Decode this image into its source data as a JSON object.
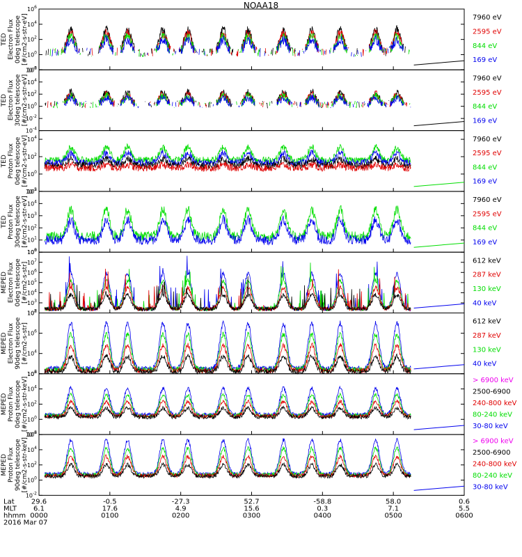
{
  "chart_data": {
    "type": "line",
    "title": "NOAA18",
    "panels": [
      {
        "ylabel": [
          "TED",
          "Electron Flux",
          "0deg telescope",
          "[#/cm2-s-str-eV]"
        ],
        "yticks": [
          "10^6",
          "10^4",
          "10^2",
          "10^0",
          "10^-2"
        ],
        "ylog": [
          -2,
          6
        ],
        "legend": [
          {
            "name": "7960 eV",
            "color": "#000000"
          },
          {
            "name": "2595 eV",
            "color": "#e00000"
          },
          {
            "name": "844 eV",
            "color": "#00dd00"
          },
          {
            "name": "169 eV",
            "color": "#0000ee"
          }
        ],
        "trace": {
          "type": "sparse",
          "base": 0.3,
          "amp": 3,
          "colors": [
            "#000000",
            "#e00000",
            "#00dd00",
            "#0000ee"
          ]
        }
      },
      {
        "ylabel": [
          "TED",
          "Electron Flux",
          "30deg telescope",
          "[#/cm2-s-str-eV]"
        ],
        "yticks": [
          "10^6",
          "10^4",
          "10^2",
          "10^0",
          "10^-2",
          "10^-4"
        ],
        "ylog": [
          -4,
          6
        ],
        "legend": [
          {
            "name": "7960 eV",
            "color": "#000000"
          },
          {
            "name": "2595 eV",
            "color": "#e00000"
          },
          {
            "name": "844 eV",
            "color": "#00dd00"
          },
          {
            "name": "169 eV",
            "color": "#0000ee"
          }
        ],
        "trace": {
          "type": "sparse",
          "base": 0.3,
          "amp": 2,
          "colors": [
            "#000000",
            "#e00000",
            "#00dd00",
            "#0000ee"
          ]
        }
      },
      {
        "ylabel": [
          "TED",
          "Proton Flux",
          "0deg telescope",
          "[#/cm2-s-str-eV]"
        ],
        "yticks": [
          "10^4",
          "10^2",
          "10^0",
          "10^-2"
        ],
        "ylog": [
          -2,
          5
        ],
        "legend": [
          {
            "name": "7960 eV",
            "color": "#000000"
          },
          {
            "name": "2595 eV",
            "color": "#e00000"
          },
          {
            "name": "844 eV",
            "color": "#00dd00"
          },
          {
            "name": "169 eV",
            "color": "#0000ee"
          }
        ],
        "trace": {
          "type": "band",
          "base": 1.6,
          "amp": 1.5,
          "colors": [
            "#00dd00",
            "#0000ee",
            "#000000",
            "#e00000"
          ]
        }
      },
      {
        "ylabel": [
          "TED",
          "Proton Flux",
          "30deg telescope",
          "[#/cm2-s-str-eV]"
        ],
        "yticks": [
          "10^5",
          "10^4",
          "10^3",
          "10^2",
          "10^1",
          "10^0"
        ],
        "ylog": [
          0,
          5
        ],
        "legend": [
          {
            "name": "7960 eV",
            "color": "#000000"
          },
          {
            "name": "2595 eV",
            "color": "#e00000"
          },
          {
            "name": "844 eV",
            "color": "#00dd00"
          },
          {
            "name": "169 eV",
            "color": "#0000ee"
          }
        ],
        "trace": {
          "type": "band",
          "base": 1.3,
          "amp": 2.2,
          "colors": [
            "#00dd00",
            "#0000ee"
          ]
        }
      },
      {
        "ylabel": [
          "MEPED",
          "Electron Flux",
          "0deg telescope",
          "[#/cm2-s-str]"
        ],
        "yticks": [
          "10^8",
          "10^7",
          "10^6",
          "10^5",
          "10^4",
          "10^3",
          "10^2"
        ],
        "ylog": [
          2,
          8
        ],
        "legend": [
          {
            "name": "612 keV",
            "color": "#000000"
          },
          {
            "name": "287 keV",
            "color": "#e00000"
          },
          {
            "name": "130 keV",
            "color": "#00dd00"
          },
          {
            "name": "40 keV",
            "color": "#0000ee"
          }
        ],
        "trace": {
          "type": "spiky",
          "base": 2.4,
          "amp": 3.5,
          "colors": [
            "#0000ee",
            "#00dd00",
            "#e00000",
            "#000000"
          ]
        }
      },
      {
        "ylabel": [
          "MEPED",
          "Electron Flux",
          "90deg telescope",
          "[#/cm2-s-str]"
        ],
        "yticks": [
          "10^8",
          "10^6",
          "10^4",
          "10^2"
        ],
        "ylog": [
          2,
          8
        ],
        "legend": [
          {
            "name": "612 keV",
            "color": "#000000"
          },
          {
            "name": "287 keV",
            "color": "#e00000"
          },
          {
            "name": "130 keV",
            "color": "#00dd00"
          },
          {
            "name": "40 keV",
            "color": "#0000ee"
          }
        ],
        "trace": {
          "type": "hump",
          "base": 2.5,
          "amp": 4.5,
          "colors": [
            "#0000ee",
            "#00dd00",
            "#e00000",
            "#000000"
          ]
        }
      },
      {
        "ylabel": [
          "MEPED",
          "Proton Flux",
          "0deg telescope",
          "[#/cm2-s-str-keV]"
        ],
        "yticks": [
          "10^6",
          "10^4",
          "10^2",
          "10^0",
          "10^-2"
        ],
        "ylog": [
          -2,
          6
        ],
        "legend": [
          {
            "name": "> 6900 keV",
            "color": "#ee00ee"
          },
          {
            "name": "2500-6900",
            "color": "#000000"
          },
          {
            "name": "240-800 keV",
            "color": "#e00000"
          },
          {
            "name": "80-240 keV",
            "color": "#00dd00"
          },
          {
            "name": "30-80 keV",
            "color": "#0000ee"
          }
        ],
        "trace": {
          "type": "hump",
          "base": 0.6,
          "amp": 3.5,
          "colors": [
            "#0000ee",
            "#00dd00",
            "#e00000",
            "#000000"
          ]
        }
      },
      {
        "ylabel": [
          "MEPED",
          "Proton Flux",
          "90deg telescope",
          "[#/cm2-s-str-keV]"
        ],
        "yticks": [
          "10^6",
          "10^4",
          "10^2",
          "10^0",
          "10^-2"
        ],
        "ylog": [
          -2,
          6
        ],
        "legend": [
          {
            "name": "> 6900 keV",
            "color": "#ee00ee"
          },
          {
            "name": "2500-6900",
            "color": "#000000"
          },
          {
            "name": "240-800 keV",
            "color": "#e00000"
          },
          {
            "name": "80-240 keV",
            "color": "#00dd00"
          },
          {
            "name": "30-80 keV",
            "color": "#0000ee"
          }
        ],
        "trace": {
          "type": "hump",
          "base": 0.8,
          "amp": 4.5,
          "colors": [
            "#0000ee",
            "#00dd00",
            "#e00000",
            "#000000"
          ]
        }
      }
    ],
    "x_axis": {
      "row_labels": [
        "Lat",
        "MLT",
        "hhmm",
        "2016 Mar 07"
      ],
      "ticks": [
        {
          "lat": "29.6",
          "mlt": "6.1",
          "hhmm": "0000"
        },
        {
          "lat": "-0.5",
          "mlt": "17.6",
          "hhmm": "0100"
        },
        {
          "lat": "-27.3",
          "mlt": "4.9",
          "hhmm": "0200"
        },
        {
          "lat": "52.7",
          "mlt": "15.6",
          "hhmm": "0300"
        },
        {
          "lat": "-58.8",
          "mlt": "0.3",
          "hhmm": "0400"
        },
        {
          "lat": "58.0",
          "mlt": "7.1",
          "hhmm": "0500"
        },
        {
          "lat": "0.6",
          "mlt": "5.5",
          "hhmm": "0600"
        }
      ],
      "range_hours": [
        0,
        6
      ],
      "data_end_hours": 5.25
    }
  }
}
